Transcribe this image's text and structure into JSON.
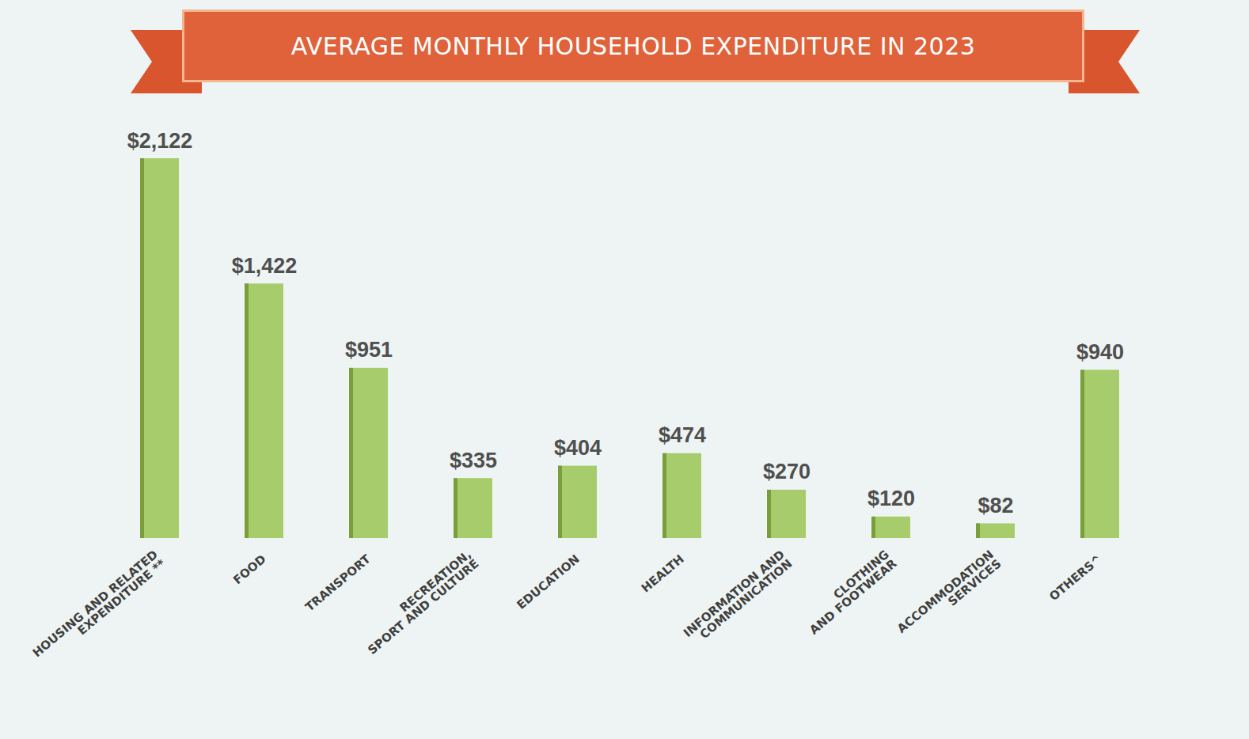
{
  "chart_data": {
    "type": "bar",
    "title": "AVERAGE MONTHLY HOUSEHOLD EXPENDITURE IN 2023",
    "categories": [
      "HOUSING AND RELATED EXPENDITURE **",
      "FOOD",
      "TRANSPORT",
      "RECREATION, SPORT AND CULTURE",
      "EDUCATION",
      "HEALTH",
      "INFORMATION AND COMMUNICATION",
      "CLOTHING AND FOOTWEAR",
      "ACCOMMODATION SERVICES",
      "OTHERS^"
    ],
    "values": [
      2122,
      1422,
      951,
      335,
      404,
      474,
      270,
      120,
      82,
      940
    ],
    "value_labels": [
      "$2,122",
      "$1,422",
      "$951",
      "$335",
      "$404",
      "$474",
      "$270",
      "$120",
      "$82",
      "$940"
    ],
    "color": "#a6cc6b",
    "ylim": [
      0,
      2122
    ],
    "yticks": [],
    "grid": false,
    "data_labels": true,
    "tick_labels": "x"
  }
}
